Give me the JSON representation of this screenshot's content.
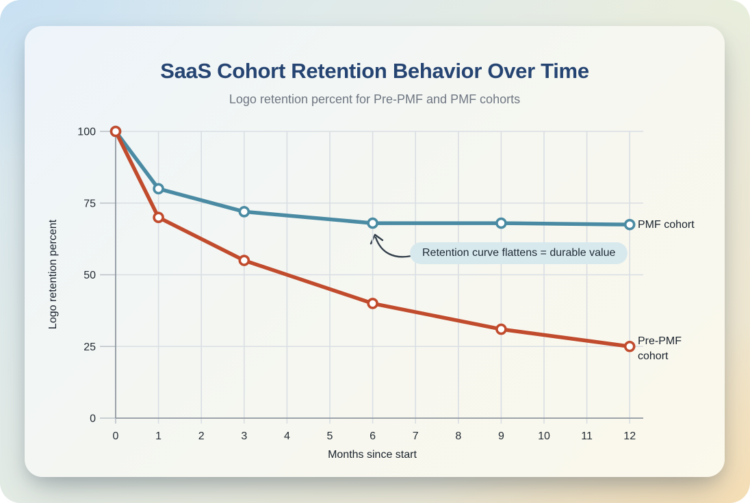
{
  "chart_data": {
    "type": "line",
    "title": "SaaS Cohort Retention Behavior Over Time",
    "subtitle": "Logo retention percent for Pre-PMF and PMF cohorts",
    "xlabel": "Months since start",
    "ylabel": "Logo retention percent",
    "x": [
      0,
      1,
      3,
      6,
      9,
      12
    ],
    "x_ticks": [
      0,
      1,
      2,
      3,
      4,
      5,
      6,
      7,
      8,
      9,
      10,
      11,
      12
    ],
    "y_ticks": [
      0,
      25,
      50,
      75,
      100
    ],
    "xlim": [
      0,
      12
    ],
    "ylim": [
      0,
      100
    ],
    "grid": true,
    "series": [
      {
        "name": "PMF cohort",
        "color": "#4a8ba3",
        "values": [
          100,
          80,
          72,
          68,
          68,
          67.5
        ]
      },
      {
        "name": "Pre-PMF cohort",
        "color": "#c14b2d",
        "values": [
          100,
          70,
          55,
          40,
          31,
          25
        ]
      }
    ],
    "annotation": {
      "text": "Retention curve flattens = durable value",
      "points_to": {
        "series": "PMF cohort",
        "x": 6
      },
      "bg_color": "#d8e9ed"
    }
  },
  "icons": {
    "annotation_arrow": "curved-arrow-up-left"
  },
  "theme": {
    "title_color": "#254472",
    "subtitle_color": "#6e7681",
    "grid_color": "#d9dee3",
    "axis_color": "#8f979f",
    "tick_color": "#222b33",
    "marker_fill": "#ffffff",
    "arrow_color": "#333f4b"
  }
}
